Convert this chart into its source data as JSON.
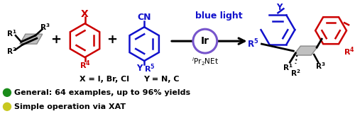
{
  "bg_color": "#ffffff",
  "blue_light_text": "blue light",
  "ir_text": "Ir",
  "x_label": "X = I, Br, Cl",
  "y_label": "Y = N, C",
  "bullet1_color": "#1a8c1a",
  "bullet2_color": "#c8c820",
  "bullet1_text": "General: 64 examples, up to 96% yields",
  "bullet2_text": "Simple operation via XAT",
  "red_color": "#cc0000",
  "blue_color": "#1111cc",
  "black_color": "#000000",
  "gray_color": "#b0b0b0",
  "purple_color": "#7755cc"
}
